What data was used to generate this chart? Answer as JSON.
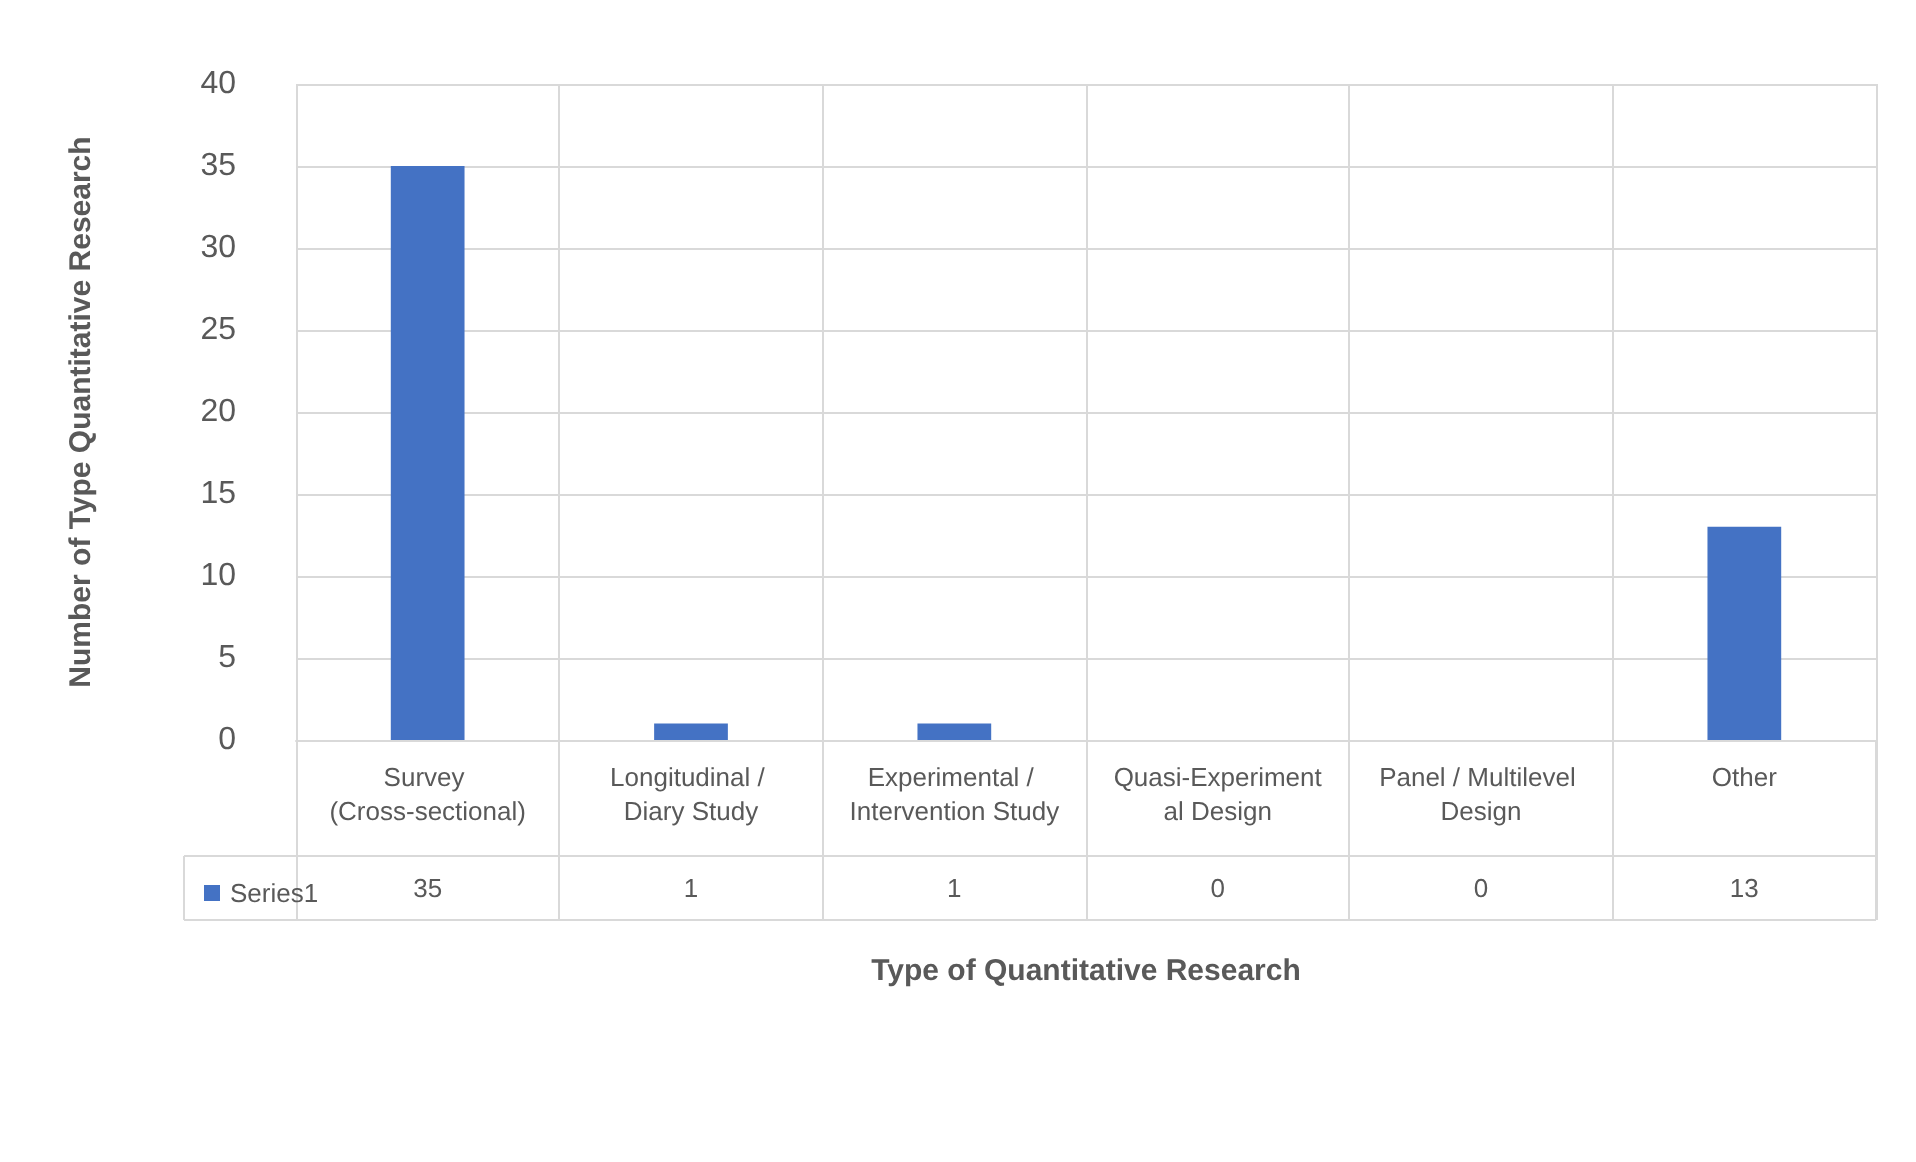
{
  "chart_data": {
    "type": "bar",
    "xlabel": "Type of Quantitative Research",
    "ylabel": "Number of Type Quantitative Research",
    "categories": [
      "Survey (Cross-sectional)",
      "Longitudinal / Diary Study",
      "Experimental / Intervention Study",
      "Quasi-Experimental Design",
      "Panel / Multilevel Design",
      "Other"
    ],
    "series": [
      {
        "name": "Series1",
        "color": "#4472c4",
        "values": [
          35,
          1,
          1,
          0,
          0,
          13
        ]
      }
    ],
    "ylim": [
      0,
      40
    ],
    "yticks": [
      0,
      5,
      10,
      15,
      20,
      25,
      30,
      35,
      40
    ],
    "grid": true,
    "legend": "bottom left",
    "data_labels": true
  }
}
